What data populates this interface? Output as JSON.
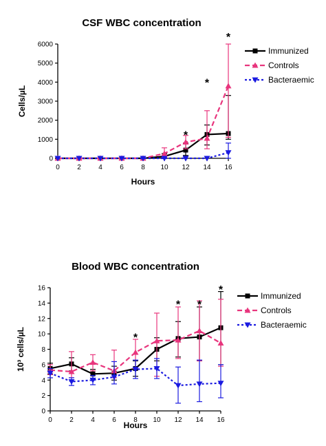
{
  "chart_data": [
    {
      "type": "line",
      "title": "CSF WBC concentration",
      "xlabel": "Hours",
      "ylabel": "Cells/µL",
      "xlim": [
        0,
        16
      ],
      "ylim": [
        0,
        6000
      ],
      "x_ticks": [
        0,
        2,
        4,
        6,
        8,
        10,
        12,
        14,
        16
      ],
      "y_ticks": [
        0,
        1000,
        2000,
        3000,
        4000,
        5000,
        6000
      ],
      "legend_position": "top-right",
      "x": [
        0,
        2,
        4,
        6,
        8,
        10,
        12,
        14,
        16
      ],
      "series": [
        {
          "name": "Immunized",
          "color": "#000000",
          "marker": "square",
          "dash": "solid",
          "values": [
            0,
            0,
            0,
            0,
            0,
            100,
            430,
            1250,
            1300
          ],
          "err_low": [
            0,
            0,
            0,
            0,
            0,
            0,
            150,
            700,
            1000
          ],
          "err_high": [
            0,
            0,
            0,
            0,
            0,
            250,
            800,
            1750,
            3300
          ]
        },
        {
          "name": "Controls",
          "color": "#e8357d",
          "marker": "triangle-up",
          "dash": "dashed",
          "values": [
            0,
            0,
            0,
            0,
            0,
            250,
            850,
            1050,
            3800
          ],
          "err_low": [
            0,
            0,
            0,
            0,
            0,
            50,
            500,
            500,
            1100
          ],
          "err_high": [
            0,
            0,
            0,
            0,
            0,
            550,
            1200,
            2500,
            6000
          ]
        },
        {
          "name": "Bacteraemic",
          "color": "#1a1ae0",
          "marker": "triangle-down",
          "dash": "dotted",
          "values": [
            0,
            0,
            0,
            0,
            0,
            0,
            0,
            0,
            300
          ],
          "err_low": [
            0,
            0,
            0,
            0,
            0,
            0,
            0,
            0,
            0
          ],
          "err_high": [
            0,
            0,
            0,
            0,
            0,
            0,
            0,
            0,
            800
          ]
        }
      ],
      "annotations": [
        {
          "text": "*",
          "x": 12,
          "y": 1250
        },
        {
          "text": "*",
          "x": 14,
          "y": 4000
        },
        {
          "text": "*",
          "x": 16,
          "y": 6400
        }
      ]
    },
    {
      "type": "line",
      "title": "Blood WBC concentration",
      "xlabel": "Hours",
      "ylabel": "10³ cells/µL",
      "xlim": [
        0,
        16
      ],
      "ylim": [
        0,
        16
      ],
      "x_ticks": [
        0,
        2,
        4,
        6,
        8,
        10,
        12,
        14,
        16
      ],
      "y_ticks": [
        0,
        2,
        4,
        6,
        8,
        10,
        12,
        14,
        16
      ],
      "legend_position": "top-right",
      "x": [
        0,
        2,
        4,
        6,
        8,
        10,
        12,
        14,
        16
      ],
      "series": [
        {
          "name": "Immunized",
          "color": "#000000",
          "marker": "square",
          "dash": "solid",
          "values": [
            5.5,
            6.1,
            4.8,
            4.9,
            5.5,
            8.0,
            9.4,
            9.6,
            10.8
          ],
          "err_low": [
            4.8,
            5.2,
            4.2,
            4.0,
            4.5,
            6.5,
            7.0,
            6.5,
            6.0
          ],
          "err_high": [
            6.2,
            6.9,
            5.4,
            5.8,
            6.5,
            9.5,
            11.6,
            13.5,
            15.5
          ]
        },
        {
          "name": "Controls",
          "color": "#e8357d",
          "marker": "triangle-up",
          "dash": "dashed",
          "values": [
            5.3,
            5.1,
            6.3,
            5.2,
            7.6,
            9.1,
            9.2,
            10.4,
            8.8
          ],
          "err_low": [
            4.7,
            4.3,
            5.2,
            4.3,
            5.5,
            4.5,
            6.8,
            6.5,
            5.8
          ],
          "err_high": [
            6.0,
            7.7,
            7.3,
            7.9,
            9.3,
            12.7,
            13.5,
            14.3,
            14.5
          ]
        },
        {
          "name": "Bacteraemic",
          "color": "#1a1ae0",
          "marker": "triangle-down",
          "dash": "dotted",
          "values": [
            4.9,
            3.8,
            4.0,
            4.4,
            5.4,
            5.5,
            3.3,
            3.5,
            3.6
          ],
          "err_low": [
            4.3,
            3.3,
            3.4,
            3.5,
            4.2,
            4.2,
            1.0,
            1.2,
            1.7
          ],
          "err_high": [
            5.5,
            4.3,
            4.6,
            6.4,
            6.6,
            6.8,
            5.7,
            6.6,
            6.0
          ]
        }
      ],
      "annotations": [
        {
          "text": "*",
          "x": 8,
          "y": 9.6
        },
        {
          "text": "*",
          "x": 12,
          "y": 13.9
        },
        {
          "text": "*",
          "x": 14,
          "y": 13.9
        },
        {
          "text": "*",
          "x": 16,
          "y": 15.8
        }
      ]
    }
  ]
}
